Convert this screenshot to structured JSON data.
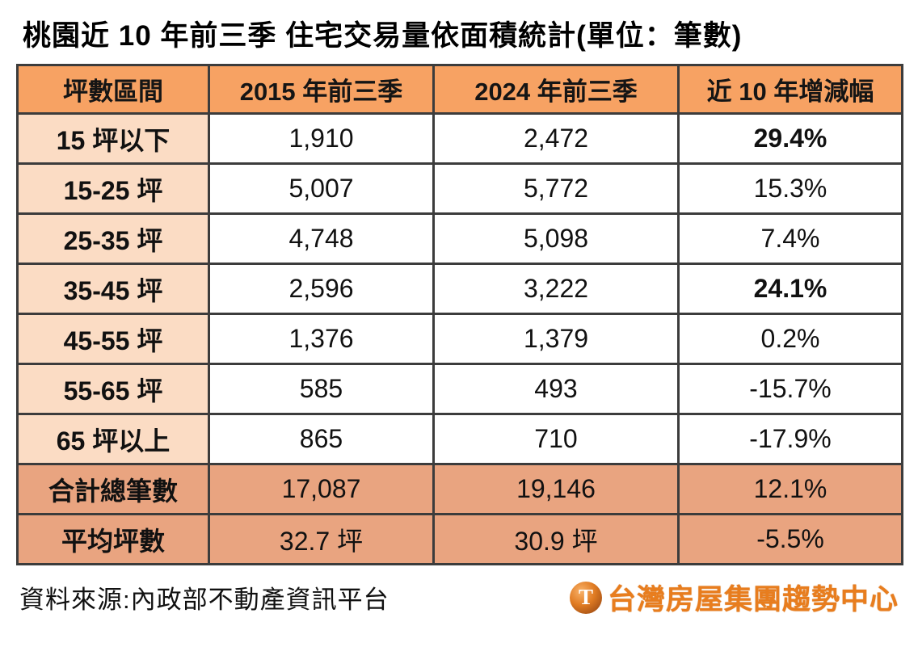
{
  "title": "桃園近 10 年前三季 住宅交易量依面積統計(單位：筆數)",
  "table": {
    "headers": [
      "坪數區間",
      "2015 年前三季",
      "2024 年前三季",
      "近 10 年增減幅"
    ],
    "rows": [
      {
        "cells": [
          "15 坪以下",
          "1,910",
          "2,472",
          "29.4%"
        ]
      },
      {
        "cells": [
          "15-25 坪",
          "5,007",
          "5,772",
          "15.3%"
        ]
      },
      {
        "cells": [
          "25-35 坪",
          "4,748",
          "5,098",
          "7.4%"
        ]
      },
      {
        "cells": [
          "35-45 坪",
          "2,596",
          "3,222",
          "24.1%"
        ]
      },
      {
        "cells": [
          "45-55 坪",
          "1,376",
          "1,379",
          "0.2%"
        ]
      },
      {
        "cells": [
          "55-65 坪",
          "585",
          "493",
          "-15.7%"
        ]
      },
      {
        "cells": [
          "65 坪以上",
          "865",
          "710",
          "-17.9%"
        ]
      },
      {
        "cells": [
          "合計總筆數",
          "17,087",
          "19,146",
          "12.1%"
        ]
      },
      {
        "cells": [
          "平均坪數",
          "32.7 坪",
          "30.9 坪",
          "-5.5%"
        ]
      }
    ]
  },
  "footer": {
    "source": "資料來源:內政部不動產資訊平台",
    "logo_badge_letter": "T",
    "logo_text": "台灣房屋集團趨勢中心"
  },
  "colors": {
    "header_bg": "#F7A263",
    "label_bg": "#FBDCC4",
    "summary_bg": "#E9A480",
    "highlight_red": "#E3211C",
    "logo_orange": "#E87D1E",
    "border": "#3C3C3C"
  },
  "chart_data": {
    "type": "table",
    "title": "桃園近 10 年前三季 住宅交易量依面積統計(單位：筆數)",
    "columns": [
      "坪數區間",
      "2015 年前三季",
      "2024 年前三季",
      "近 10 年增減幅"
    ],
    "rows": [
      [
        "15 坪以下",
        1910,
        2472,
        "29.4%"
      ],
      [
        "15-25 坪",
        5007,
        5772,
        "15.3%"
      ],
      [
        "25-35 坪",
        4748,
        5098,
        "7.4%"
      ],
      [
        "35-45 坪",
        2596,
        3222,
        "24.1%"
      ],
      [
        "45-55 坪",
        1376,
        1379,
        "0.2%"
      ],
      [
        "55-65 坪",
        585,
        493,
        "-15.7%"
      ],
      [
        "65 坪以上",
        865,
        710,
        "-17.9%"
      ],
      [
        "合計總筆數",
        17087,
        19146,
        "12.1%"
      ],
      [
        "平均坪數",
        "32.7 坪",
        "30.9 坪",
        "-5.5%"
      ]
    ],
    "annotations": {
      "red_highlight_cells": [
        "row 15 坪以下 → 29.4%",
        "row 15-25 坪 → 5,007 and 5,772",
        "row 35-45 坪 → 24.1%"
      ],
      "source": "資料來源:內政部不動產資訊平台"
    }
  }
}
